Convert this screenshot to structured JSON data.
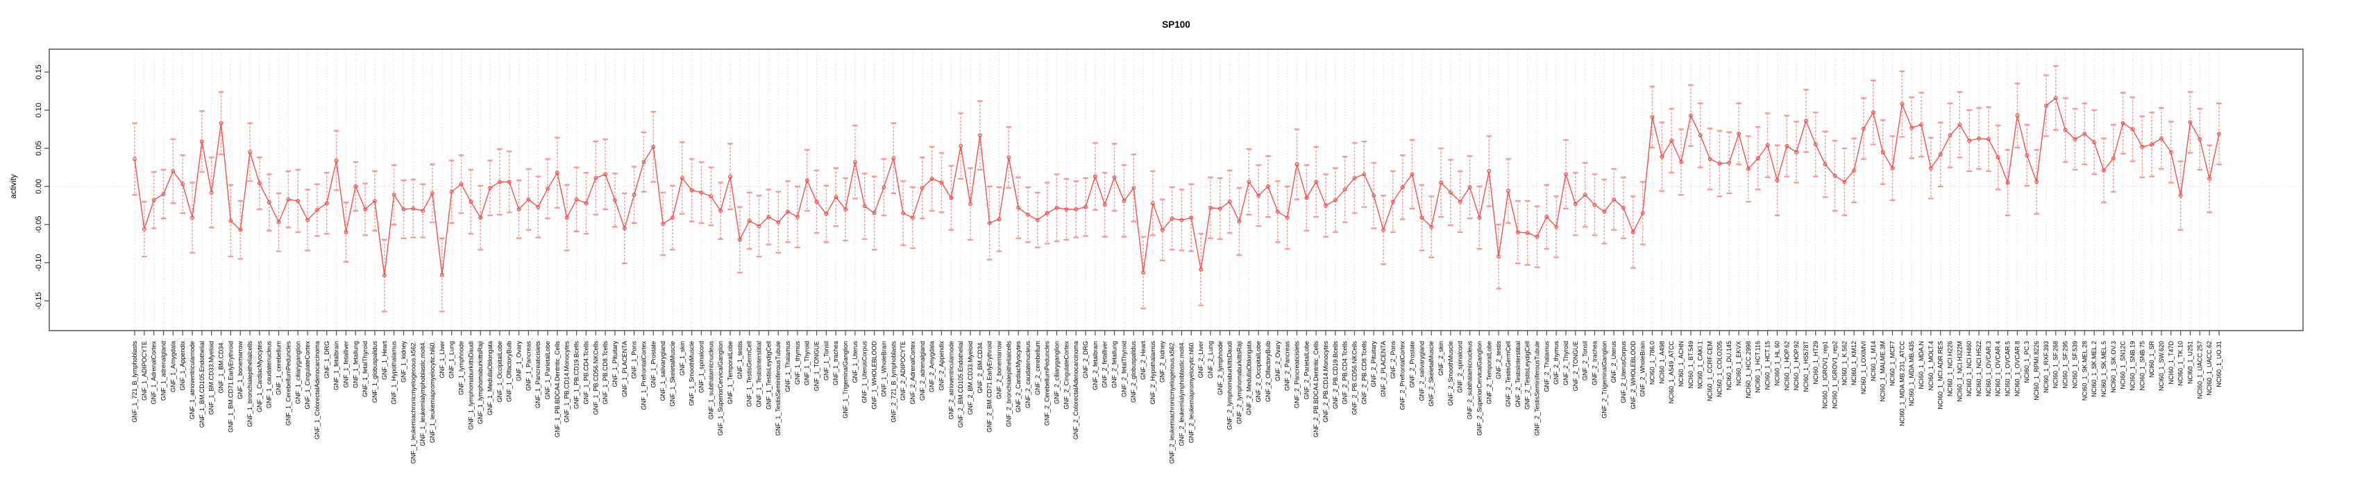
{
  "chart_data": {
    "type": "line",
    "error_bars": true,
    "title": "SP100",
    "xlabel": "",
    "ylabel": "activity",
    "ylim": [
      -0.185,
      0.178
    ],
    "grid": true,
    "legend": "none",
    "ytick_values": [
      0.15,
      0.1,
      0.05,
      0.0,
      -0.05,
      -0.1,
      -0.15
    ],
    "ytick_labels": [
      "0.15",
      "0.10",
      "0.05",
      "0.00",
      "-0.05",
      "-0.10",
      "-0.15"
    ],
    "style": {
      "point_color": "#f4514d",
      "line_color": "#f4514d",
      "errorbar_color": "#fb9492",
      "grid_color": "#d9d9d9",
      "zero_line_color": "#d4d4d4",
      "box_color": "#7e7e7e",
      "tick_color": "#4d4d4d",
      "background": "#ffffff"
    },
    "categories": [
      "GNF_1_721_B_lymphoblasts",
      "GNF_1_ADIPOCYTE",
      "GNF_1_AdrenalCortex",
      "GNF_1_adrenalgland",
      "GNF_1_Amygdala",
      "GNF_1_Appendix",
      "GNF_1_atrioventricularnode",
      "GNF_1_BM.CD105.Endothelial",
      "GNF_1_BM.CD33.Myeloid",
      "GNF_1_BM.CD34.",
      "GNF_1_BM.CD71.EarlyErythroid",
      "GNF_1_bonemarrow",
      "GNF_1_bronchialepithelialcells",
      "GNF_1_CardiacMyocytes",
      "GNF_1_caudatenucleus",
      "GNF_1_cerebellum",
      "GNF_1_CerebellumPeduncles",
      "GNF_1_ciliaryganglion",
      "GNF_1_CingulateCortex",
      "GNF_1_ColorectalAdenocarcinoma",
      "GNF_1_DRG",
      "GNF_1_fetalbrain",
      "GNF_1_fetalliver",
      "GNF_1_fetallung",
      "GNF_1_fetalThyroid",
      "GNF_1_globuspalidus",
      "GNF_1_Heart",
      "GNF_1_Hypothalamus",
      "GNF_1_kidney",
      "GNF_1_leukemiachronicmyelogenous.k562.",
      "GNF_1_leukemialymphoblastic.molt4.",
      "GNF_1_leukemiapromyelocytic.hl60.",
      "GNF_1_Liver",
      "GNF_1_Lung",
      "GNF_1_lymphnode",
      "GNF_1_lymphomaburkittsDaudi",
      "GNF_1_lymphomaburkittsRaji",
      "GNF_1_MedullaOblongata",
      "GNF_1_OccipitalLobe",
      "GNF_1_OlfactoryBulb",
      "GNF_1_Ovary",
      "GNF_1_Pancreas",
      "GNF_1_Pancreaticislets",
      "GNF_1_ParietalLobe",
      "GNF_1_PB.BDCA4.Dentritic_Cells",
      "GNF_1_PB.CD14.Monocytes",
      "GNF_1_PB.CD19.Bcells",
      "GNF_1_PB.CD4.Tcells",
      "GNF_1_PB.CD56.NKCells",
      "GNF_1_PB.CD8.Tcells",
      "GNF_1_Pituitary",
      "GNF_1_PLACENTA",
      "GNF_1_Pons",
      "GNF_1_PrefrontalCortex",
      "GNF_1_Prostate",
      "GNF_1_salivarygland",
      "GNF_1_SkeletalMuscle",
      "GNF_1_skin",
      "GNF_1_SmoothMuscle",
      "GNF_1_spinalcord",
      "GNF_1_subthalamicnucleus",
      "GNF_1_SuperiorCervicalGanglion",
      "GNF_1_TemporalLobe",
      "GNF_1_testis",
      "GNF_1_TestisGermCell",
      "GNF_1_TestisInterstitial",
      "GNF_1_TestisLeydigCell",
      "GNF_1_TestisSeminiferousTubule",
      "GNF_1_Thalamus",
      "GNF_1_thymus",
      "GNF_1_Thyroid",
      "GNF_1_TONGUE",
      "GNF_1_Tonsil",
      "GNF_1_trachea",
      "GNF_1_TrigeminalGanglion",
      "GNF_1_Uterus",
      "GNF_1_UterusCorpus",
      "GNF_1_WHOLEBLOOD",
      "GNF_1_WholeBrain",
      "GNF_2_721_B_lymphoblasts",
      "GNF_2_ADIPOCYTE",
      "GNF_2_AdrenalCortex",
      "GNF_2_adrenalgland",
      "GNF_2_Amygdala",
      "GNF_2_Appendix",
      "GNF_2_atrioventricularnode",
      "GNF_2_BM.CD105.Endothelial",
      "GNF_2_BM.CD33.Myeloid",
      "GNF_2_BM.CD34.",
      "GNF_2_BM.CD71.EarlyErythroid",
      "GNF_2_bonemarrow",
      "GNF_2_bronchialepithelialcells",
      "GNF_2_CardiacMyocytes",
      "GNF_2_caudatenucleus",
      "GNF_2_cerebellum",
      "GNF_2_CerebellumPeduncles",
      "GNF_2_ciliaryganglion",
      "GNF_2_CingulateCortex",
      "GNF_2_ColorectalAdenocarcinoma",
      "GNF_2_DRG",
      "GNF_2_fetalbrain",
      "GNF_2_fetalliver",
      "GNF_2_fetallung",
      "GNF_2_fetalThyroid",
      "GNF_2_globuspalidus",
      "GNF_2_Heart",
      "GNF_2_Hypothalamus",
      "GNF_2_kidney",
      "GNF_2_leukemiachronicmyelogenous.k562.",
      "GNF_2_leukemialymphoblastic.molt4.",
      "GNF_2_leukemiapromyelocytic.hl60.",
      "GNF_2_Liver",
      "GNF_2_Lung",
      "GNF_2_lymphnode",
      "GNF_2_lymphomaburkittsDaudi",
      "GNF_2_lymphomaburkittsRaji",
      "GNF_2_MedullaOblongata",
      "GNF_2_OccipitalLobe",
      "GNF_2_OlfactoryBulb",
      "GNF_2_Ovary",
      "GNF_2_Pancreas",
      "GNF_2_Pancreaticislets",
      "GNF_2_ParietalLobe",
      "GNF_2_PB.BDCA4.Dentritic_Cells",
      "GNF_2_PB.CD14.Monocytes",
      "GNF_2_PB.CD19.Bcells",
      "GNF_2_PB.CD4.Tcells",
      "GNF_2_PB.CD56.NKCells",
      "GNF_2_PB.CD8.Tcells",
      "GNF_2_Pituitary",
      "GNF_2_PLACENTA",
      "GNF_2_Pons",
      "GNF_2_PrefrontalCortex",
      "GNF_2_Prostate",
      "GNF_2_salivarygland",
      "GNF_2_SkeletalMuscle",
      "GNF_2_skin",
      "GNF_2_SmoothMuscle",
      "GNF_2_spinalcord",
      "GNF_2_subthalamicnucleus",
      "GNF_2_SuperiorCervicalGanglion",
      "GNF_2_TemporalLobe",
      "GNF_2_testis",
      "GNF_2_TestisGermCell",
      "GNF_2_TestisInterstitial",
      "GNF_2_TestisLeydigCell",
      "GNF_2_TestisSeminiferousTubule",
      "GNF_2_Thalamus",
      "GNF_2_thymus",
      "GNF_2_Thyroid",
      "GNF_2_TONGUE",
      "GNF_2_Tonsil",
      "GNF_2_trachea",
      "GNF_2_TrigeminalGanglion",
      "GNF_2_Uterus",
      "GNF_2_UterusCorpus",
      "GNF_2_WHOLEBLOOD",
      "GNF_2_WholeBrain",
      "NCI60_1_786.0",
      "NCI60_1_A498",
      "NCI60_1_A549_ATCC",
      "NCI60_1_ACHN",
      "NCI60_1_BT.549",
      "NCI60_1_CAKI.1",
      "NCI60_1_CCRF.CEM",
      "NCI60_1_COLO205",
      "NCI60_1_DU.145",
      "NCI60_1_EKVX",
      "NCI60_1_HCC.2998",
      "NCI60_1_HCT.116",
      "NCI60_1_HCT.15",
      "NCI60_1_HL.60",
      "NCI60_1_HOP.62",
      "NCI60_1_HOP.92",
      "NCI60_1_HS578T",
      "NCI60_1_HT29",
      "NCI60_1_IGROV1_rep1",
      "NCI60_1_IGROV1_rep2",
      "NCI60_1_K.562",
      "NCI60_1_KM12",
      "NCI60_1_LOXIMVI",
      "NCI60_1_M14",
      "NCI60_1_MALME.3M",
      "NCI60_1_MCF7",
      "NCI60_1_MDA.MB.231_ATCC",
      "NCI60_1_MDA.MB.435",
      "NCI60_1_MDA.N",
      "NCI60_1_MOLT.4",
      "NCI60_1_NCI.ADR.RES",
      "NCI60_1_NCI.H226",
      "NCI60_1_NCI.H322M",
      "NCI60_1_NCI.H460",
      "NCI60_1_NCI.H522",
      "NCI60_1_OVCAR.3",
      "NCI60_1_OVCAR.4",
      "NCI60_1_OVCAR.5",
      "NCI60_1_OVCAR.8",
      "NCI60_1_PC.3",
      "NCI60_1_RPMI.8226",
      "NCI60_1_RXF.393",
      "NCI60_1_SF.268",
      "NCI60_1_SF.295",
      "NCI60_1_SF.539",
      "NCI60_1_SK.MEL.28",
      "NCI60_1_SK.MEL.2",
      "NCI60_1_SK.MEL.5",
      "NCI60_1_SK.OV.3",
      "NCI60_1_SN12C",
      "NCI60_1_SNB.19",
      "NCI60_1_SNB.75",
      "NCI60_1_SR",
      "NCI60_1_SW.620",
      "NCI60_1_T47D",
      "NCI60_1_TK.10",
      "NCI60_1_U251",
      "NCI60_1_UACC.257",
      "NCI60_1_UACC.62",
      "NCI60_1_UO.31"
    ],
    "values": [
      0.036,
      -0.056,
      -0.018,
      -0.01,
      0.02,
      0.003,
      -0.041,
      0.059,
      -0.008,
      0.083,
      -0.045,
      -0.057,
      0.045,
      0.004,
      -0.021,
      -0.047,
      -0.017,
      -0.019,
      -0.044,
      -0.031,
      -0.022,
      0.034,
      -0.06,
      0.0,
      -0.03,
      -0.019,
      -0.117,
      -0.011,
      -0.03,
      -0.029,
      -0.032,
      -0.009,
      -0.116,
      -0.007,
      0.003,
      -0.02,
      -0.041,
      -0.002,
      0.006,
      0.006,
      -0.03,
      -0.017,
      -0.027,
      -0.003,
      0.018,
      -0.041,
      -0.017,
      -0.022,
      0.011,
      0.016,
      -0.018,
      -0.055,
      -0.011,
      0.032,
      0.052,
      -0.049,
      -0.041,
      0.011,
      -0.005,
      -0.008,
      -0.013,
      -0.032,
      0.013,
      -0.07,
      -0.045,
      -0.052,
      -0.04,
      -0.047,
      -0.033,
      -0.04,
      0.008,
      -0.02,
      -0.036,
      -0.014,
      -0.03,
      0.032,
      -0.026,
      -0.035,
      -0.001,
      0.037,
      -0.035,
      -0.041,
      -0.002,
      0.01,
      0.005,
      -0.015,
      0.053,
      -0.023,
      0.067,
      -0.048,
      -0.043,
      0.038,
      -0.028,
      -0.037,
      -0.044,
      -0.035,
      -0.028,
      -0.03,
      -0.03,
      -0.027,
      0.013,
      -0.024,
      0.012,
      -0.019,
      -0.002,
      -0.113,
      -0.022,
      -0.057,
      -0.042,
      -0.044,
      -0.041,
      -0.109,
      -0.028,
      -0.029,
      -0.02,
      -0.046,
      0.006,
      -0.012,
      0.0,
      -0.033,
      -0.041,
      0.029,
      -0.015,
      0.006,
      -0.025,
      -0.018,
      -0.004,
      0.011,
      0.016,
      -0.012,
      -0.057,
      -0.02,
      -0.001,
      0.016,
      -0.041,
      -0.053,
      0.005,
      -0.008,
      -0.02,
      -0.001,
      -0.041,
      0.02,
      -0.092,
      -0.006,
      -0.06,
      -0.061,
      -0.066,
      -0.04,
      -0.053,
      0.016,
      -0.023,
      -0.011,
      -0.024,
      -0.033,
      -0.017,
      -0.028,
      -0.06,
      -0.035,
      0.091,
      0.039,
      0.06,
      0.032,
      0.093,
      0.067,
      0.036,
      0.03,
      0.031,
      0.069,
      0.023,
      0.037,
      0.054,
      0.008,
      0.053,
      0.045,
      0.086,
      0.055,
      0.029,
      0.014,
      0.006,
      0.021,
      0.076,
      0.097,
      0.045,
      0.024,
      0.108,
      0.077,
      0.081,
      0.024,
      0.042,
      0.067,
      0.081,
      0.06,
      0.063,
      0.062,
      0.038,
      0.005,
      0.093,
      0.041,
      0.006,
      0.106,
      0.116,
      0.074,
      0.062,
      0.069,
      0.058,
      0.021,
      0.037,
      0.083,
      0.075,
      0.052,
      0.055,
      0.063,
      0.045,
      -0.012,
      0.084,
      0.062,
      0.01,
      0.069
    ],
    "se": [
      0.047,
      0.036,
      0.037,
      0.032,
      0.042,
      0.038,
      0.046,
      0.04,
      0.046,
      0.041,
      0.047,
      0.038,
      0.038,
      0.034,
      0.037,
      0.038,
      0.037,
      0.041,
      0.04,
      0.034,
      0.04,
      0.039,
      0.039,
      0.032,
      0.034,
      0.039,
      0.047,
      0.039,
      0.038,
      0.038,
      0.035,
      0.038,
      0.048,
      0.041,
      0.038,
      0.042,
      0.042,
      0.036,
      0.043,
      0.04,
      0.038,
      0.04,
      0.04,
      0.039,
      0.046,
      0.043,
      0.042,
      0.04,
      0.048,
      0.046,
      0.035,
      0.046,
      0.037,
      0.039,
      0.046,
      0.041,
      0.042,
      0.047,
      0.041,
      0.04,
      0.038,
      0.037,
      0.043,
      0.043,
      0.037,
      0.04,
      0.036,
      0.04,
      0.04,
      0.04,
      0.04,
      0.041,
      0.037,
      0.038,
      0.041,
      0.048,
      0.043,
      0.048,
      0.037,
      0.046,
      0.042,
      0.04,
      0.04,
      0.042,
      0.039,
      0.042,
      0.043,
      0.047,
      0.045,
      0.048,
      0.042,
      0.04,
      0.04,
      0.036,
      0.036,
      0.04,
      0.044,
      0.04,
      0.037,
      0.038,
      0.044,
      0.042,
      0.044,
      0.047,
      0.044,
      0.047,
      0.042,
      0.04,
      0.041,
      0.04,
      0.044,
      0.047,
      0.04,
      0.04,
      0.041,
      0.044,
      0.043,
      0.04,
      0.04,
      0.04,
      0.041,
      0.046,
      0.043,
      0.046,
      0.041,
      0.042,
      0.043,
      0.046,
      0.043,
      0.043,
      0.045,
      0.04,
      0.042,
      0.045,
      0.043,
      0.04,
      0.045,
      0.043,
      0.04,
      0.041,
      0.041,
      0.046,
      0.042,
      0.042,
      0.041,
      0.042,
      0.04,
      0.042,
      0.04,
      0.045,
      0.041,
      0.042,
      0.04,
      0.042,
      0.04,
      0.04,
      0.047,
      0.041,
      0.04,
      0.045,
      0.042,
      0.043,
      0.04,
      0.042,
      0.04,
      0.043,
      0.04,
      0.04,
      0.043,
      0.041,
      0.042,
      0.046,
      0.04,
      0.04,
      0.041,
      0.042,
      0.043,
      0.046,
      0.044,
      0.042,
      0.04,
      0.042,
      0.042,
      0.042,
      0.043,
      0.04,
      0.042,
      0.04,
      0.042,
      0.042,
      0.043,
      0.04,
      0.04,
      0.042,
      0.042,
      0.043,
      0.042,
      0.04,
      0.042,
      0.04,
      0.042,
      0.042,
      0.04,
      0.04,
      0.042,
      0.042,
      0.044,
      0.04,
      0.042,
      0.04,
      0.042,
      0.04,
      0.04,
      0.045,
      0.04,
      0.04,
      0.044,
      0.04
    ]
  }
}
